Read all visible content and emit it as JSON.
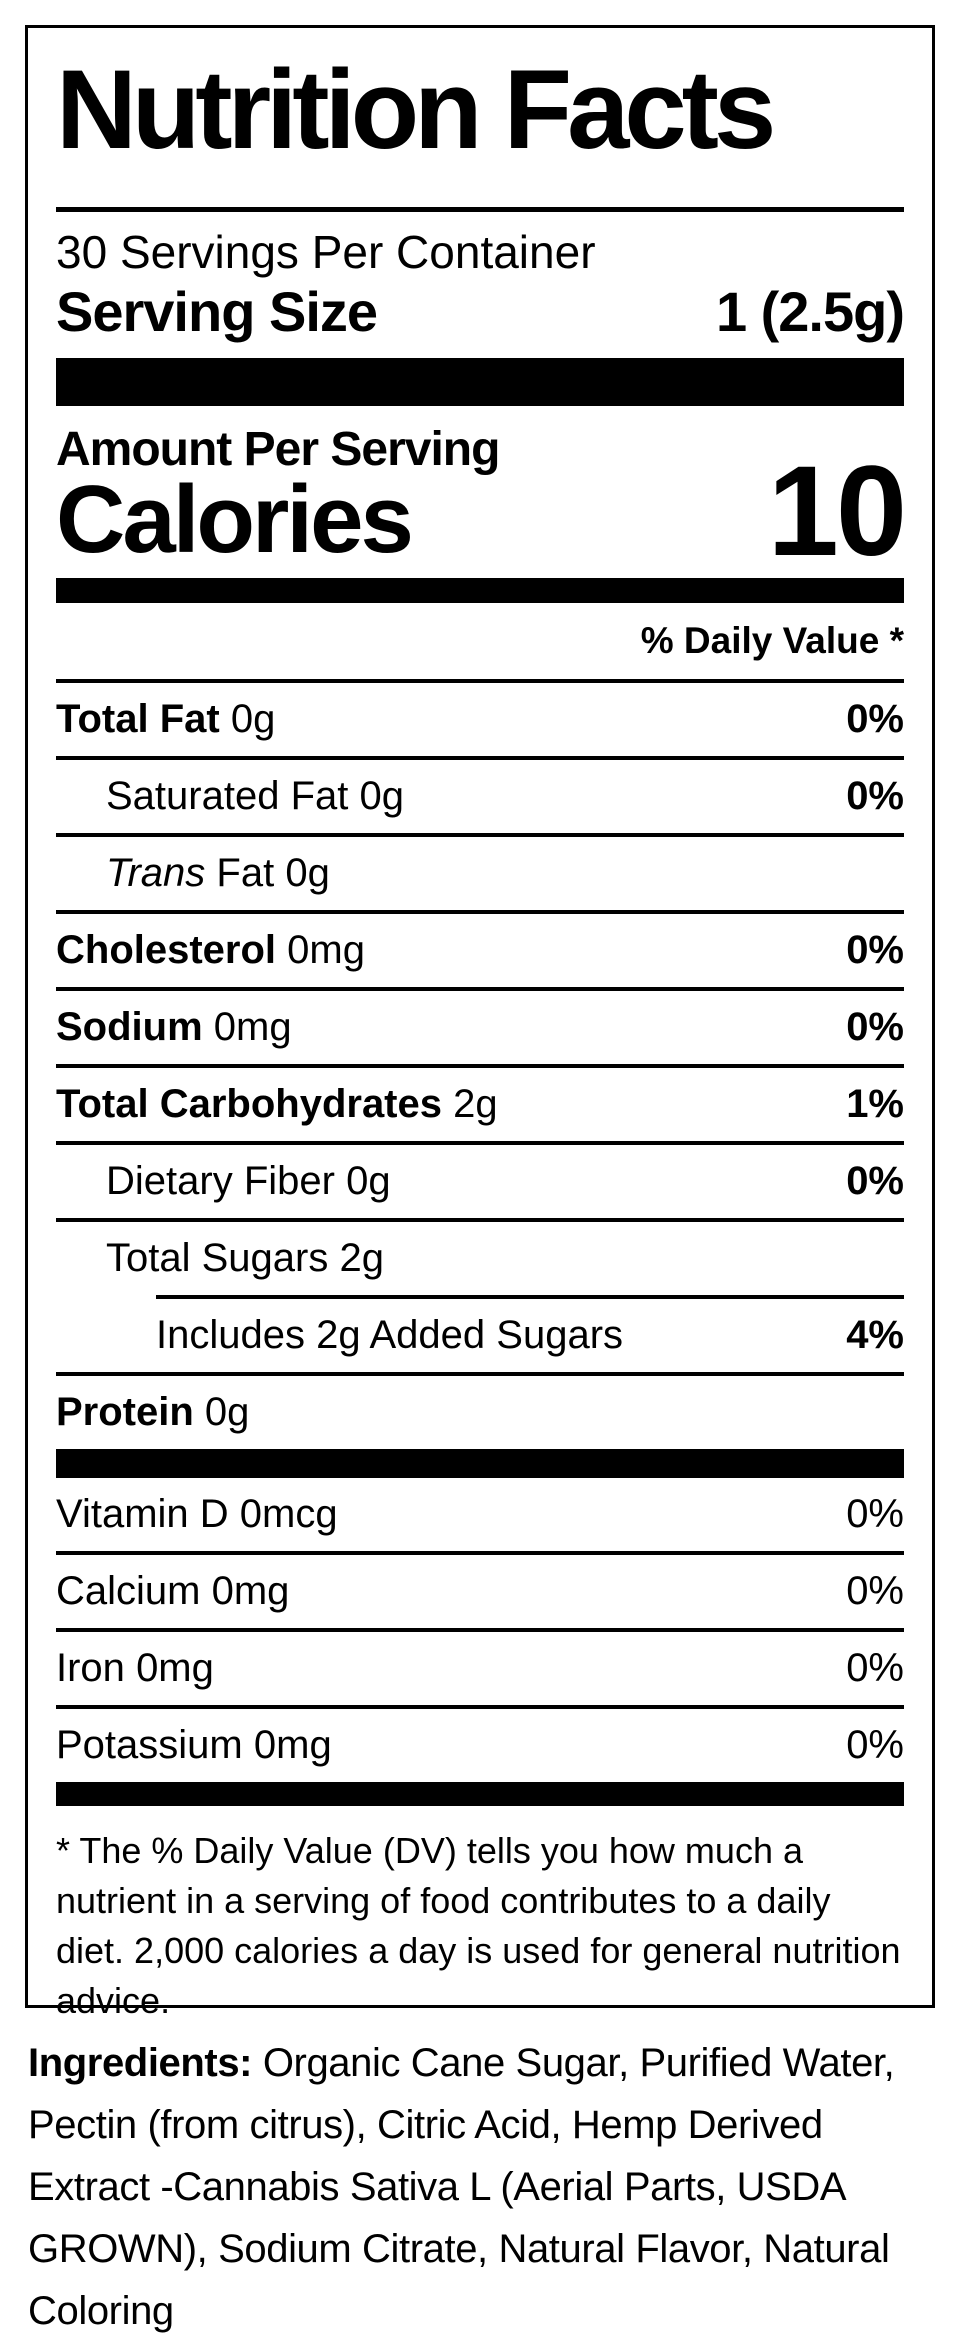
{
  "colors": {
    "text": "#000000",
    "background": "#ffffff",
    "rule": "#000000"
  },
  "label": {
    "title": "Nutrition Facts",
    "servings_per_container": "30 Servings Per Container",
    "serving_size": {
      "label": "Serving Size",
      "value": "1 (2.5g)"
    },
    "calories": {
      "header": "Amount Per Serving",
      "label": "Calories",
      "value": "10"
    },
    "daily_value_header": "% Daily Value *",
    "nutrients": [
      {
        "name": "Total Fat",
        "amount": "0g",
        "dv": "0%"
      },
      {
        "name": "Saturated Fat",
        "amount": "0g",
        "dv": "0%"
      },
      {
        "name_italic": "Trans",
        "name": "Fat",
        "amount": "0g",
        "dv": ""
      },
      {
        "name": "Cholesterol",
        "amount": "0mg",
        "dv": "0%"
      },
      {
        "name": "Sodium",
        "amount": "0mg",
        "dv": "0%"
      },
      {
        "name": "Total Carbohydrates",
        "amount": "2g",
        "dv": "1%"
      },
      {
        "name": "Dietary Fiber",
        "amount": "0g",
        "dv": "0%"
      },
      {
        "name": "Total Sugars",
        "amount": "2g",
        "dv": ""
      },
      {
        "name": "Includes 2g Added Sugars",
        "amount": "",
        "dv": "4%"
      },
      {
        "name": "Protein",
        "amount": "0g",
        "dv": ""
      }
    ],
    "micronutrients": [
      {
        "name": "Vitamin D",
        "amount": "0mcg",
        "dv": "0%"
      },
      {
        "name": "Calcium",
        "amount": "0mg",
        "dv": "0%"
      },
      {
        "name": "Iron",
        "amount": "0mg",
        "dv": "0%"
      },
      {
        "name": "Potassium",
        "amount": "0mg",
        "dv": "0%"
      }
    ],
    "footnote": "* The % Daily Value (DV) tells you how much a nutrient in a serving of food contributes to a daily diet. 2,000 calories a day is used for general nutrition advice.",
    "ingredients": {
      "label": "Ingredients:",
      "text": "Organic Cane Sugar, Purified Water, Pectin (from citrus), Citric Acid, Hemp Derived Extract -Cannabis Sativa L (Aerial Parts, USDA GROWN), Sodium Citrate, Natural Flavor, Natural Coloring"
    }
  }
}
